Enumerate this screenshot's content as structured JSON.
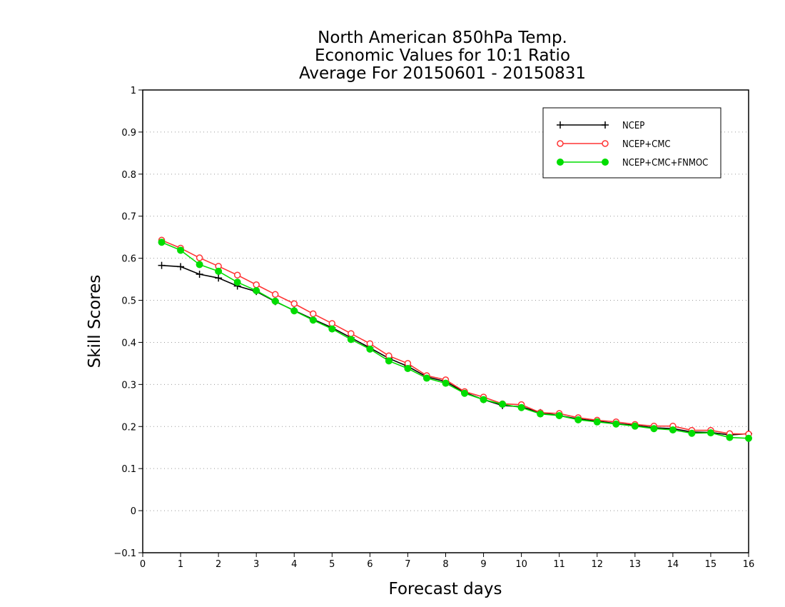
{
  "chart_data": {
    "type": "line",
    "title": [
      "North American 850hPa Temp.",
      "Economic Values for 10:1 Ratio",
      "Average For 20150601 - 20150831"
    ],
    "xlabel": "Forecast days",
    "ylabel": "Skill Scores",
    "xlim": [
      0,
      16
    ],
    "ylim": [
      -0.1,
      1
    ],
    "xticks": [
      0,
      1,
      2,
      3,
      4,
      5,
      6,
      7,
      8,
      9,
      10,
      11,
      12,
      13,
      14,
      15,
      16
    ],
    "yticks": [
      -0.1,
      0,
      0.1,
      0.2,
      0.3,
      0.4,
      0.5,
      0.6,
      0.7,
      0.8,
      0.9,
      1
    ],
    "ytick_labels": [
      "−0.1",
      "0",
      "0.1",
      "0.2",
      "0.3",
      "0.4",
      "0.5",
      "0.6",
      "0.7",
      "0.8",
      "0.9",
      "1"
    ],
    "grid": "horizontal-dotted",
    "legend_position": "top-right",
    "x": [
      0.5,
      1,
      1.5,
      2,
      2.5,
      3,
      3.5,
      4,
      4.5,
      5,
      5.5,
      6,
      6.5,
      7,
      7.5,
      8,
      8.5,
      9,
      9.5,
      10,
      10.5,
      11,
      11.5,
      12,
      12.5,
      13,
      13.5,
      14,
      14.5,
      15,
      15.5,
      16
    ],
    "series": [
      {
        "name": "NCEP",
        "color": "#000000",
        "marker": "plus",
        "values": [
          0.583,
          0.58,
          0.562,
          0.553,
          0.534,
          0.521,
          0.497,
          0.476,
          0.455,
          0.435,
          0.411,
          0.387,
          0.362,
          0.343,
          0.318,
          0.307,
          0.281,
          0.264,
          0.25,
          0.247,
          0.233,
          0.226,
          0.218,
          0.213,
          0.207,
          0.203,
          0.197,
          0.195,
          0.187,
          0.186,
          0.18,
          0.183
        ]
      },
      {
        "name": "NCEP+CMC",
        "color": "#ff3333",
        "marker": "open-circle",
        "values": [
          0.643,
          0.624,
          0.601,
          0.581,
          0.56,
          0.537,
          0.514,
          0.492,
          0.468,
          0.445,
          0.421,
          0.397,
          0.368,
          0.35,
          0.321,
          0.311,
          0.283,
          0.27,
          0.254,
          0.252,
          0.233,
          0.231,
          0.221,
          0.215,
          0.211,
          0.205,
          0.201,
          0.201,
          0.191,
          0.191,
          0.183,
          0.182
        ]
      },
      {
        "name": "NCEP+CMC+FNMOC",
        "color": "#00dd00",
        "marker": "filled-circle",
        "values": [
          0.638,
          0.619,
          0.585,
          0.569,
          0.543,
          0.523,
          0.498,
          0.475,
          0.453,
          0.432,
          0.407,
          0.384,
          0.356,
          0.338,
          0.315,
          0.303,
          0.279,
          0.264,
          0.253,
          0.245,
          0.23,
          0.226,
          0.216,
          0.211,
          0.206,
          0.201,
          0.195,
          0.192,
          0.184,
          0.185,
          0.174,
          0.172
        ]
      }
    ]
  }
}
